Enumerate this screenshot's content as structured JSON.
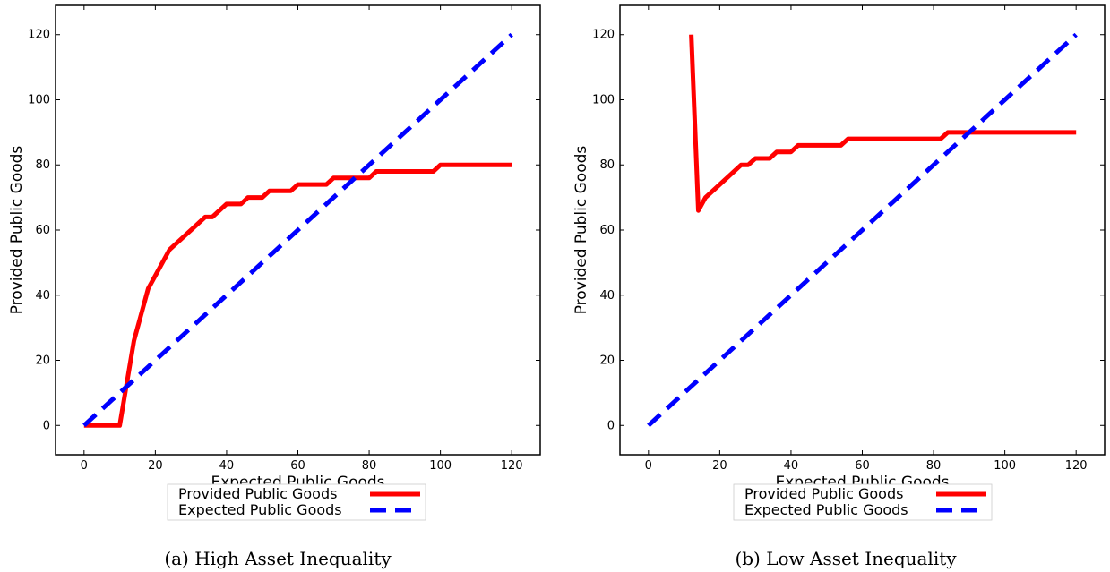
{
  "chart_data": [
    {
      "type": "line",
      "caption": "(a) High Asset Inequality",
      "xlabel": "Expected Public Goods",
      "ylabel": "Provided Public Goods",
      "xlim": [
        -8,
        128
      ],
      "ylim": [
        -9,
        129
      ],
      "xticks": [
        0,
        20,
        40,
        60,
        80,
        100,
        120
      ],
      "yticks": [
        0,
        20,
        40,
        60,
        80,
        100,
        120
      ],
      "legend_position": "bottom-center",
      "series": [
        {
          "name": "Provided Public Goods",
          "color": "#ff0000",
          "style": "solid",
          "x": [
            0,
            10,
            14,
            18,
            24,
            30,
            34,
            36,
            40,
            44,
            46,
            50,
            52,
            58,
            60,
            68,
            70,
            80,
            82,
            98,
            100,
            120
          ],
          "y": [
            0,
            0,
            26,
            42,
            54,
            60,
            64,
            64,
            68,
            68,
            70,
            70,
            72,
            72,
            74,
            74,
            76,
            76,
            78,
            78,
            80,
            80
          ]
        },
        {
          "name": "Expected Public Goods",
          "color": "#0000ff",
          "style": "dashed",
          "x": [
            0,
            120
          ],
          "y": [
            0,
            120
          ]
        }
      ]
    },
    {
      "type": "line",
      "caption": "(b) Low Asset Inequality",
      "xlabel": "Expected Public Goods",
      "ylabel": "Provided Public Goods",
      "xlim": [
        -8,
        128
      ],
      "ylim": [
        -9,
        129
      ],
      "xticks": [
        0,
        20,
        40,
        60,
        80,
        100,
        120
      ],
      "yticks": [
        0,
        20,
        40,
        60,
        80,
        100,
        120
      ],
      "legend_position": "bottom-center",
      "series": [
        {
          "name": "Provided Public Goods",
          "color": "#ff0000",
          "style": "solid",
          "x": [
            12,
            14,
            16,
            20,
            26,
            28,
            30,
            34,
            36,
            40,
            42,
            54,
            56,
            82,
            84,
            120
          ],
          "y": [
            120,
            66,
            70,
            74,
            80,
            80,
            82,
            82,
            84,
            84,
            86,
            86,
            88,
            88,
            90,
            90
          ]
        },
        {
          "name": "Expected Public Goods",
          "color": "#0000ff",
          "style": "dashed",
          "x": [
            0,
            120
          ],
          "y": [
            0,
            120
          ]
        }
      ]
    }
  ]
}
